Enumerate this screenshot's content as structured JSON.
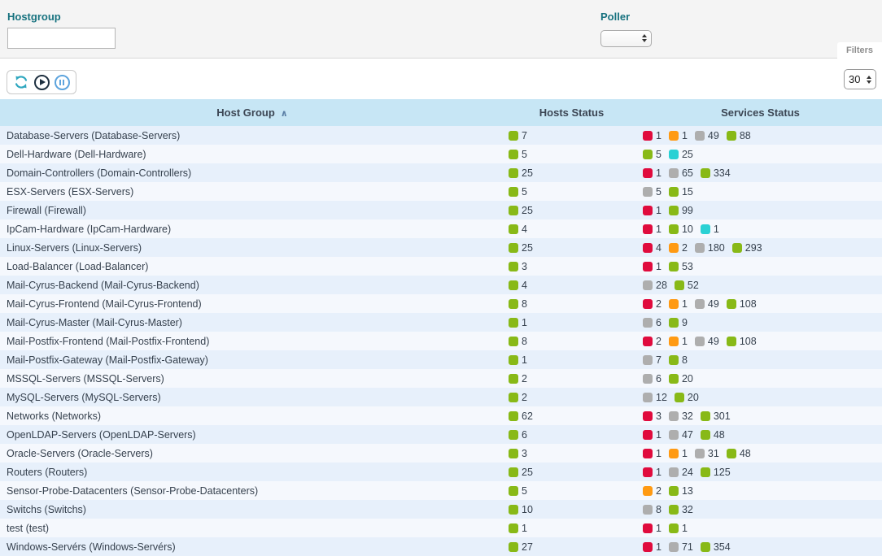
{
  "filters": {
    "hostgroup_label": "Hostgroup",
    "hostgroup_value": "",
    "poller_label": "Poller",
    "poller_value": "",
    "filters_tab_label": "Filters"
  },
  "toolbar": {
    "icons": [
      "refresh-icon",
      "play-icon",
      "pause-icon"
    ],
    "page_size_value": "30"
  },
  "colors": {
    "green": "#88b917",
    "red": "#e00b3d",
    "orange": "#ff9a13",
    "gray": "#aeaeae",
    "cyan": "#2ad1d4",
    "header_bg": "#c7e6f5",
    "label_teal": "#17727f"
  },
  "table": {
    "columns": {
      "host_group": "Host Group",
      "hosts_status": "Hosts Status",
      "services_status": "Services Status"
    },
    "sort_indicator": "∧",
    "rows": [
      {
        "name": "Database-Servers (Database-Servers)",
        "hosts": [
          {
            "c": "green",
            "v": "7"
          }
        ],
        "services": [
          {
            "c": "red",
            "v": "1"
          },
          {
            "c": "orange",
            "v": "1"
          },
          {
            "c": "gray",
            "v": "49"
          },
          {
            "c": "green",
            "v": "88"
          }
        ]
      },
      {
        "name": "Dell-Hardware (Dell-Hardware)",
        "hosts": [
          {
            "c": "green",
            "v": "5"
          }
        ],
        "services": [
          {
            "c": "green",
            "v": "5"
          },
          {
            "c": "cyan",
            "v": "25"
          }
        ]
      },
      {
        "name": "Domain-Controllers (Domain-Controllers)",
        "hosts": [
          {
            "c": "green",
            "v": "25"
          }
        ],
        "services": [
          {
            "c": "red",
            "v": "1"
          },
          {
            "c": "gray",
            "v": "65"
          },
          {
            "c": "green",
            "v": "334"
          }
        ]
      },
      {
        "name": "ESX-Servers (ESX-Servers)",
        "hosts": [
          {
            "c": "green",
            "v": "5"
          }
        ],
        "services": [
          {
            "c": "gray",
            "v": "5"
          },
          {
            "c": "green",
            "v": "15"
          }
        ]
      },
      {
        "name": "Firewall (Firewall)",
        "hosts": [
          {
            "c": "green",
            "v": "25"
          }
        ],
        "services": [
          {
            "c": "red",
            "v": "1"
          },
          {
            "c": "green",
            "v": "99"
          }
        ]
      },
      {
        "name": "IpCam-Hardware (IpCam-Hardware)",
        "hosts": [
          {
            "c": "green",
            "v": "4"
          }
        ],
        "services": [
          {
            "c": "red",
            "v": "1"
          },
          {
            "c": "green",
            "v": "10"
          },
          {
            "c": "cyan",
            "v": "1"
          }
        ]
      },
      {
        "name": "Linux-Servers (Linux-Servers)",
        "hosts": [
          {
            "c": "green",
            "v": "25"
          }
        ],
        "services": [
          {
            "c": "red",
            "v": "4"
          },
          {
            "c": "orange",
            "v": "2"
          },
          {
            "c": "gray",
            "v": "180"
          },
          {
            "c": "green",
            "v": "293"
          }
        ]
      },
      {
        "name": "Load-Balancer (Load-Balancer)",
        "hosts": [
          {
            "c": "green",
            "v": "3"
          }
        ],
        "services": [
          {
            "c": "red",
            "v": "1"
          },
          {
            "c": "green",
            "v": "53"
          }
        ]
      },
      {
        "name": "Mail-Cyrus-Backend (Mail-Cyrus-Backend)",
        "hosts": [
          {
            "c": "green",
            "v": "4"
          }
        ],
        "services": [
          {
            "c": "gray",
            "v": "28"
          },
          {
            "c": "green",
            "v": "52"
          }
        ]
      },
      {
        "name": "Mail-Cyrus-Frontend (Mail-Cyrus-Frontend)",
        "hosts": [
          {
            "c": "green",
            "v": "8"
          }
        ],
        "services": [
          {
            "c": "red",
            "v": "2"
          },
          {
            "c": "orange",
            "v": "1"
          },
          {
            "c": "gray",
            "v": "49"
          },
          {
            "c": "green",
            "v": "108"
          }
        ]
      },
      {
        "name": "Mail-Cyrus-Master (Mail-Cyrus-Master)",
        "hosts": [
          {
            "c": "green",
            "v": "1"
          }
        ],
        "services": [
          {
            "c": "gray",
            "v": "6"
          },
          {
            "c": "green",
            "v": "9"
          }
        ]
      },
      {
        "name": "Mail-Postfix-Frontend (Mail-Postfix-Frontend)",
        "hosts": [
          {
            "c": "green",
            "v": "8"
          }
        ],
        "services": [
          {
            "c": "red",
            "v": "2"
          },
          {
            "c": "orange",
            "v": "1"
          },
          {
            "c": "gray",
            "v": "49"
          },
          {
            "c": "green",
            "v": "108"
          }
        ]
      },
      {
        "name": "Mail-Postfix-Gateway (Mail-Postfix-Gateway)",
        "hosts": [
          {
            "c": "green",
            "v": "1"
          }
        ],
        "services": [
          {
            "c": "gray",
            "v": "7"
          },
          {
            "c": "green",
            "v": "8"
          }
        ]
      },
      {
        "name": "MSSQL-Servers (MSSQL-Servers)",
        "hosts": [
          {
            "c": "green",
            "v": "2"
          }
        ],
        "services": [
          {
            "c": "gray",
            "v": "6"
          },
          {
            "c": "green",
            "v": "20"
          }
        ]
      },
      {
        "name": "MySQL-Servers (MySQL-Servers)",
        "hosts": [
          {
            "c": "green",
            "v": "2"
          }
        ],
        "services": [
          {
            "c": "gray",
            "v": "12"
          },
          {
            "c": "green",
            "v": "20"
          }
        ]
      },
      {
        "name": "Networks (Networks)",
        "hosts": [
          {
            "c": "green",
            "v": "62"
          }
        ],
        "services": [
          {
            "c": "red",
            "v": "3"
          },
          {
            "c": "gray",
            "v": "32"
          },
          {
            "c": "green",
            "v": "301"
          }
        ]
      },
      {
        "name": "OpenLDAP-Servers (OpenLDAP-Servers)",
        "hosts": [
          {
            "c": "green",
            "v": "6"
          }
        ],
        "services": [
          {
            "c": "red",
            "v": "1"
          },
          {
            "c": "gray",
            "v": "47"
          },
          {
            "c": "green",
            "v": "48"
          }
        ]
      },
      {
        "name": "Oracle-Servers (Oracle-Servers)",
        "hosts": [
          {
            "c": "green",
            "v": "3"
          }
        ],
        "services": [
          {
            "c": "red",
            "v": "1"
          },
          {
            "c": "orange",
            "v": "1"
          },
          {
            "c": "gray",
            "v": "31"
          },
          {
            "c": "green",
            "v": "48"
          }
        ]
      },
      {
        "name": "Routers (Routers)",
        "hosts": [
          {
            "c": "green",
            "v": "25"
          }
        ],
        "services": [
          {
            "c": "red",
            "v": "1"
          },
          {
            "c": "gray",
            "v": "24"
          },
          {
            "c": "green",
            "v": "125"
          }
        ]
      },
      {
        "name": "Sensor-Probe-Datacenters (Sensor-Probe-Datacenters)",
        "hosts": [
          {
            "c": "green",
            "v": "5"
          }
        ],
        "services": [
          {
            "c": "orange",
            "v": "2"
          },
          {
            "c": "green",
            "v": "13"
          }
        ]
      },
      {
        "name": "Switchs (Switchs)",
        "hosts": [
          {
            "c": "green",
            "v": "10"
          }
        ],
        "services": [
          {
            "c": "gray",
            "v": "8"
          },
          {
            "c": "green",
            "v": "32"
          }
        ]
      },
      {
        "name": "test (test)",
        "hosts": [
          {
            "c": "green",
            "v": "1"
          }
        ],
        "services": [
          {
            "c": "red",
            "v": "1"
          },
          {
            "c": "green",
            "v": "1"
          }
        ]
      },
      {
        "name": "Windows-Servérs (Windows-Servérs)",
        "hosts": [
          {
            "c": "green",
            "v": "27"
          }
        ],
        "services": [
          {
            "c": "red",
            "v": "1"
          },
          {
            "c": "gray",
            "v": "71"
          },
          {
            "c": "green",
            "v": "354"
          }
        ]
      }
    ]
  }
}
